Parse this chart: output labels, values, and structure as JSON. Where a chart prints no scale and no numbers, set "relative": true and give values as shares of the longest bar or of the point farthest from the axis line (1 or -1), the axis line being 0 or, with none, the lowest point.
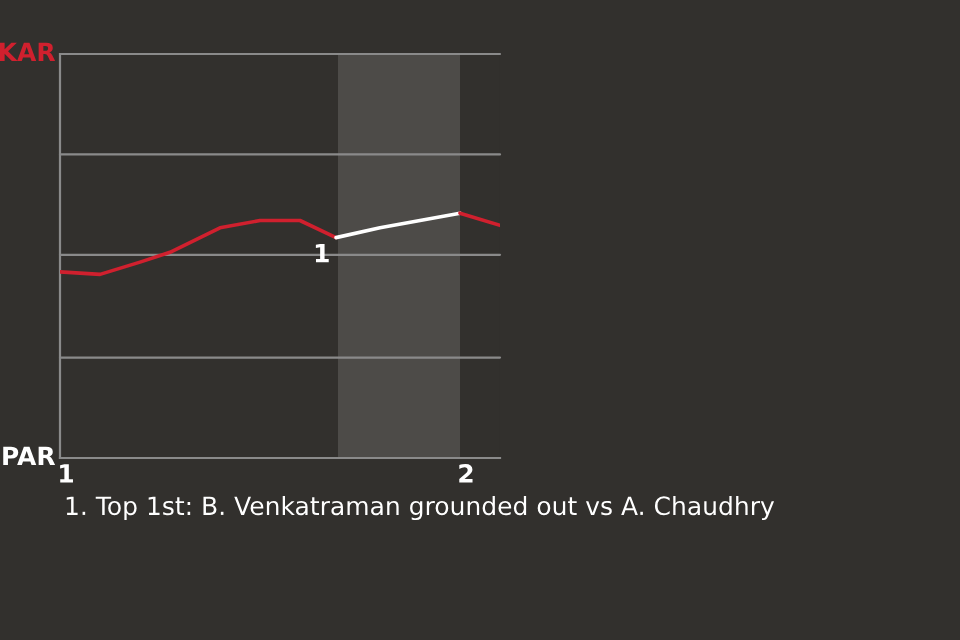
{
  "chart_data": {
    "type": "line",
    "relative": true,
    "annotations": [
      "KAR",
      "PAR",
      {
        "text": "1",
        "x": 1.675,
        "y": 0.9
      },
      "1. Top 1st: B. Venkatraman grounded out vs A. Chaudhry"
    ],
    "series": [
      {
        "color": "#d0202e",
        "x": [
          0.985,
          1.085,
          1.185,
          1.26,
          1.385,
          1.485,
          1.585,
          1.675
        ],
        "values": [
          0.76,
          0.75,
          0.8,
          0.84,
          0.94,
          0.97,
          0.97,
          0.9
        ]
      },
      {
        "color": "#ffffff",
        "x": [
          1.675,
          1.785,
          1.885,
          1.985
        ],
        "values": [
          0.9,
          0.94,
          0.97,
          1
        ]
      },
      {
        "color": "#d0202e",
        "x": [
          1.985,
          2.085
        ],
        "values": [
          1,
          0.95
        ]
      }
    ],
    "xlim": [
      0.985,
      2.085
    ],
    "xticks": [
      1,
      2
    ],
    "bands": [
      {
        "axis": "x",
        "from": 1.68,
        "to": 1.985,
        "color": "#4d4b48"
      }
    ],
    "ref_lines": [
      {
        "axis": "y",
        "value": 0.41,
        "color": "#8a8a8a"
      },
      {
        "axis": "y",
        "value": 0.83,
        "color": "#8a8a8a"
      },
      {
        "axis": "y",
        "value": 1.24,
        "color": "#8a8a8a"
      },
      {
        "axis": "y",
        "value": 1.65,
        "color": "#8a8a8a"
      }
    ],
    "marker": "none",
    "line_style": "solid"
  }
}
